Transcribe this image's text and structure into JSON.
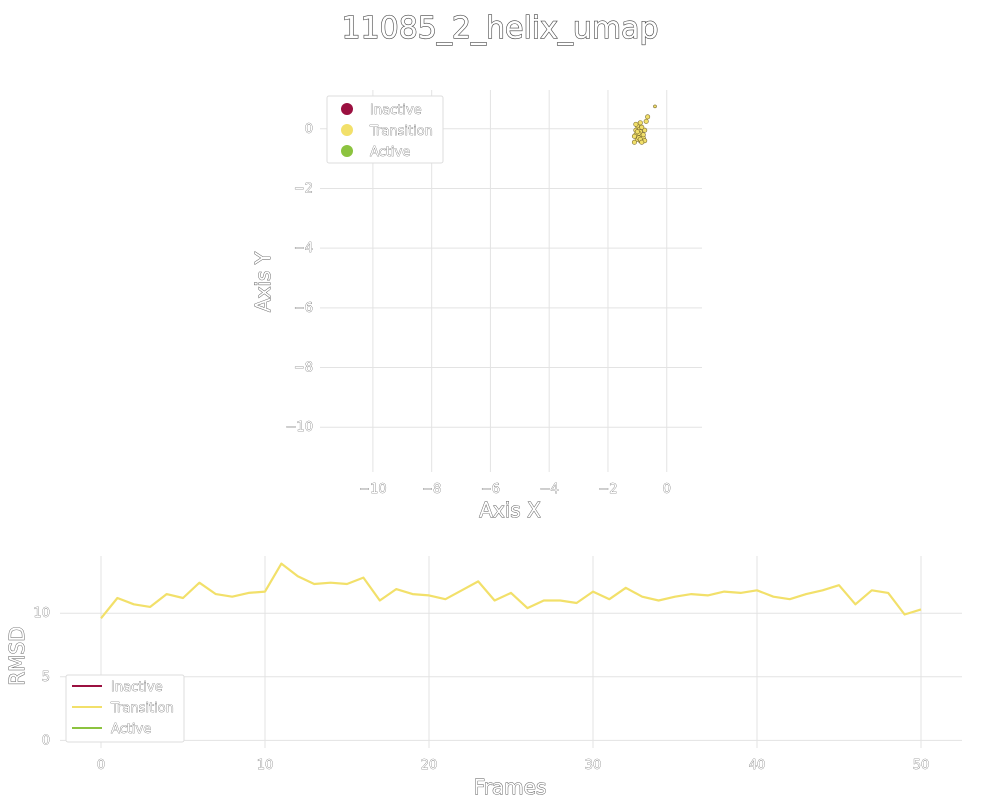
{
  "title": "11085_2_helix_umap",
  "colors": {
    "Inactive": "#9b1040",
    "Transition": "#f2e06a",
    "Active": "#8cc33f"
  },
  "chart_data": [
    {
      "type": "scatter",
      "xlabel": "Axis X",
      "ylabel": "Axis Y",
      "xlim": [
        -11.8,
        1.2
      ],
      "ylim": [
        -11.5,
        1.3
      ],
      "xticks": [
        -10,
        -8,
        -6,
        -4,
        -2,
        0
      ],
      "yticks": [
        0,
        -2,
        -4,
        -6,
        -8,
        -10
      ],
      "xtick_labels": [
        "−10",
        "−8",
        "−6",
        "−4",
        "−2",
        "0"
      ],
      "ytick_labels": [
        "0",
        "−2",
        "−4",
        "−6",
        "−8",
        "−10"
      ],
      "grid": true,
      "legend": {
        "position": "upper-left",
        "entries": [
          "Inactive",
          "Transition",
          "Active"
        ]
      },
      "series": [
        {
          "name": "Transition",
          "points": [
            [
              -0.95,
              0.0
            ],
            [
              -0.9,
              -0.1
            ],
            [
              -1.05,
              -0.2
            ],
            [
              -0.85,
              -0.25
            ],
            [
              -1.0,
              -0.35
            ],
            [
              -0.9,
              -0.4
            ],
            [
              -1.1,
              -0.45
            ],
            [
              -0.8,
              -0.3
            ],
            [
              -1.0,
              0.1
            ],
            [
              -0.95,
              -0.15
            ],
            [
              -0.75,
              -0.05
            ],
            [
              -0.7,
              0.25
            ],
            [
              -0.65,
              0.4
            ],
            [
              -1.05,
              -0.05
            ],
            [
              -0.85,
              0.05
            ],
            [
              -0.95,
              -0.3
            ],
            [
              -1.1,
              -0.25
            ],
            [
              -0.8,
              -0.2
            ],
            [
              -0.4,
              0.75
            ],
            [
              -0.9,
              -0.35
            ],
            [
              -1.0,
              -0.1
            ],
            [
              -0.75,
              -0.4
            ],
            [
              -0.85,
              -0.45
            ],
            [
              -1.05,
              0.15
            ],
            [
              -0.9,
              0.2
            ]
          ]
        }
      ]
    },
    {
      "type": "line",
      "xlabel": "Frames",
      "ylabel": "RMSD",
      "xlim": [
        -2.5,
        52.5
      ],
      "ylim": [
        -0.6,
        14.5
      ],
      "xticks": [
        0,
        10,
        20,
        30,
        40,
        50
      ],
      "yticks": [
        0,
        5,
        10
      ],
      "xtick_labels": [
        "0",
        "10",
        "20",
        "30",
        "40",
        "50"
      ],
      "ytick_labels": [
        "0",
        "5",
        "10"
      ],
      "grid": true,
      "legend": {
        "position": "lower-left",
        "entries": [
          "Inactive",
          "Transition",
          "Active"
        ]
      },
      "series": [
        {
          "name": "Transition",
          "x": [
            0,
            1,
            2,
            3,
            4,
            5,
            6,
            7,
            8,
            9,
            10,
            11,
            12,
            13,
            14,
            15,
            16,
            17,
            18,
            19,
            20,
            21,
            22,
            23,
            24,
            25,
            26,
            27,
            28,
            29,
            30,
            31,
            32,
            33,
            34,
            35,
            36,
            37,
            38,
            39,
            40,
            41,
            42,
            43,
            44,
            45,
            46,
            47,
            48,
            49,
            50
          ],
          "y": [
            9.6,
            11.2,
            10.7,
            10.5,
            11.5,
            11.2,
            12.4,
            11.5,
            11.3,
            11.6,
            11.7,
            13.9,
            12.9,
            12.3,
            12.4,
            12.3,
            12.8,
            11.0,
            11.9,
            11.5,
            11.4,
            11.1,
            11.8,
            12.5,
            11.0,
            11.6,
            10.4,
            11.0,
            11.0,
            10.8,
            11.7,
            11.1,
            12.0,
            11.3,
            11.0,
            11.3,
            11.5,
            11.4,
            11.7,
            11.6,
            11.8,
            11.3,
            11.1,
            11.5,
            11.8,
            12.2,
            10.7,
            11.8,
            11.6,
            9.9,
            10.3
          ]
        }
      ]
    }
  ]
}
